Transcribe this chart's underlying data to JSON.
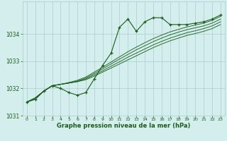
{
  "x": [
    0,
    1,
    2,
    3,
    4,
    5,
    6,
    7,
    8,
    9,
    10,
    11,
    12,
    13,
    14,
    15,
    16,
    17,
    18,
    19,
    20,
    21,
    22,
    23
  ],
  "main_line": [
    1031.5,
    1031.6,
    1031.9,
    1032.1,
    1032.0,
    1031.85,
    1031.75,
    1031.85,
    1032.35,
    1032.85,
    1033.3,
    1034.25,
    1034.55,
    1034.1,
    1034.45,
    1034.6,
    1034.6,
    1034.35,
    1034.35,
    1034.35,
    1034.4,
    1034.45,
    1034.55,
    1034.7
  ],
  "smooth_line1": [
    1031.5,
    1031.65,
    1031.9,
    1032.1,
    1032.15,
    1032.2,
    1032.25,
    1032.32,
    1032.45,
    1032.6,
    1032.75,
    1032.9,
    1033.05,
    1033.2,
    1033.35,
    1033.5,
    1033.63,
    1033.75,
    1033.85,
    1033.95,
    1034.02,
    1034.1,
    1034.2,
    1034.35
  ],
  "smooth_line2": [
    1031.5,
    1031.65,
    1031.9,
    1032.1,
    1032.15,
    1032.2,
    1032.25,
    1032.35,
    1032.5,
    1032.65,
    1032.82,
    1032.98,
    1033.15,
    1033.3,
    1033.45,
    1033.6,
    1033.73,
    1033.85,
    1033.95,
    1034.05,
    1034.12,
    1034.2,
    1034.3,
    1034.45
  ],
  "smooth_line3": [
    1031.5,
    1031.65,
    1031.9,
    1032.1,
    1032.15,
    1032.2,
    1032.27,
    1032.38,
    1032.55,
    1032.72,
    1032.9,
    1033.08,
    1033.25,
    1033.42,
    1033.57,
    1033.72,
    1033.85,
    1033.97,
    1034.07,
    1034.16,
    1034.23,
    1034.3,
    1034.4,
    1034.55
  ],
  "smooth_line4": [
    1031.5,
    1031.65,
    1031.9,
    1032.1,
    1032.15,
    1032.22,
    1032.3,
    1032.42,
    1032.6,
    1032.78,
    1032.97,
    1033.16,
    1033.35,
    1033.52,
    1033.68,
    1033.83,
    1033.96,
    1034.08,
    1034.17,
    1034.26,
    1034.33,
    1034.4,
    1034.5,
    1034.65
  ],
  "line_color": "#1a5c1a",
  "bg_color": "#d4eeee",
  "grid_color": "#a8cece",
  "xlabel": "Graphe pression niveau de la mer (hPa)",
  "ylim": [
    1031.0,
    1035.2
  ],
  "yticks": [
    1031,
    1032,
    1033,
    1034
  ],
  "xticks": [
    0,
    1,
    2,
    3,
    4,
    5,
    6,
    7,
    8,
    9,
    10,
    11,
    12,
    13,
    14,
    15,
    16,
    17,
    18,
    19,
    20,
    21,
    22,
    23
  ]
}
